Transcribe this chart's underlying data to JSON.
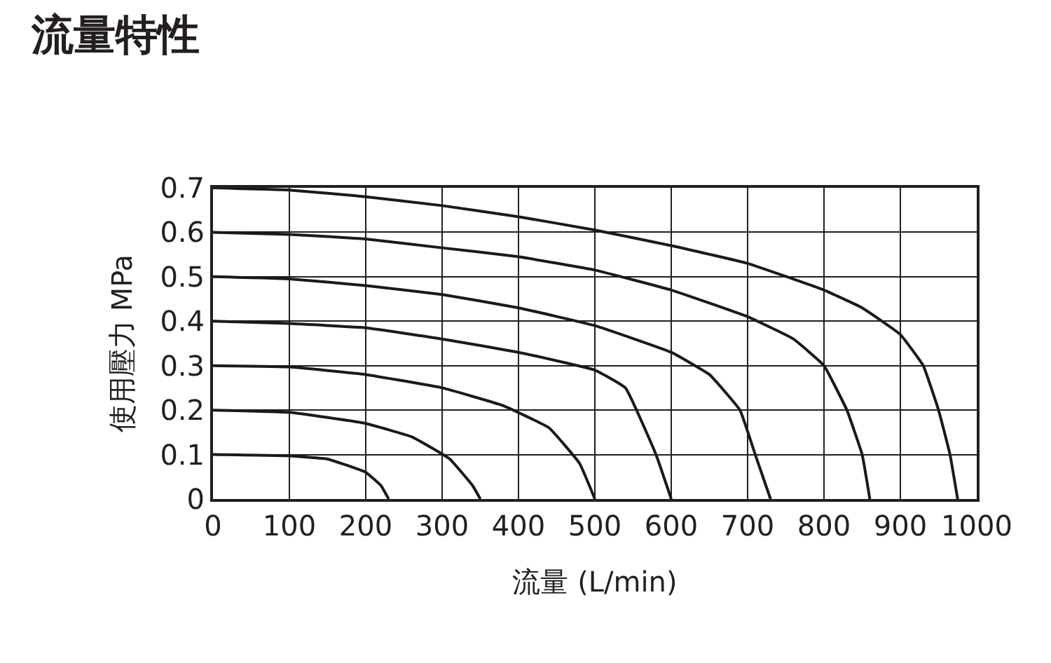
{
  "chart_data": {
    "type": "line",
    "title": "流量特性",
    "xlabel": "流量 (L/min)",
    "ylabel": "使用壓力 MPa",
    "xlim": [
      0,
      1000
    ],
    "xticks": [
      0,
      100,
      200,
      300,
      400,
      500,
      600,
      700,
      800,
      900,
      1000
    ],
    "ylim": [
      0,
      0.7
    ],
    "yticks": [
      0,
      0.1,
      0.2,
      0.3,
      0.4,
      0.5,
      0.6,
      0.7
    ],
    "grid": true,
    "marker": "none",
    "line_style": "solid",
    "series": [
      {
        "color": "#1a1a1a",
        "x": [
          0,
          100,
          150,
          200,
          220,
          230
        ],
        "values": [
          0.1,
          0.097,
          0.09,
          0.06,
          0.03,
          0
        ]
      },
      {
        "color": "#1a1a1a",
        "x": [
          0,
          100,
          200,
          260,
          310,
          340,
          350
        ],
        "values": [
          0.2,
          0.195,
          0.17,
          0.14,
          0.09,
          0.03,
          0
        ]
      },
      {
        "color": "#1a1a1a",
        "x": [
          0,
          100,
          200,
          300,
          380,
          440,
          480,
          500
        ],
        "values": [
          0.3,
          0.297,
          0.28,
          0.25,
          0.21,
          0.16,
          0.08,
          0
        ]
      },
      {
        "color": "#1a1a1a",
        "x": [
          0,
          100,
          200,
          300,
          400,
          500,
          540,
          580,
          600
        ],
        "values": [
          0.4,
          0.395,
          0.385,
          0.36,
          0.33,
          0.29,
          0.25,
          0.1,
          0
        ]
      },
      {
        "color": "#1a1a1a",
        "x": [
          0,
          100,
          200,
          300,
          400,
          500,
          600,
          650,
          690,
          710,
          730
        ],
        "values": [
          0.5,
          0.495,
          0.48,
          0.46,
          0.43,
          0.39,
          0.33,
          0.28,
          0.2,
          0.1,
          0
        ]
      },
      {
        "color": "#1a1a1a",
        "x": [
          0,
          100,
          200,
          300,
          400,
          500,
          600,
          700,
          760,
          800,
          830,
          850,
          860
        ],
        "values": [
          0.6,
          0.595,
          0.585,
          0.565,
          0.545,
          0.515,
          0.47,
          0.41,
          0.36,
          0.3,
          0.2,
          0.1,
          0
        ]
      },
      {
        "color": "#1a1a1a",
        "x": [
          0,
          100,
          200,
          300,
          400,
          500,
          600,
          700,
          800,
          850,
          900,
          930,
          950,
          965,
          975
        ],
        "values": [
          0.7,
          0.695,
          0.68,
          0.66,
          0.635,
          0.605,
          0.57,
          0.53,
          0.47,
          0.43,
          0.37,
          0.3,
          0.2,
          0.1,
          0
        ]
      }
    ]
  }
}
